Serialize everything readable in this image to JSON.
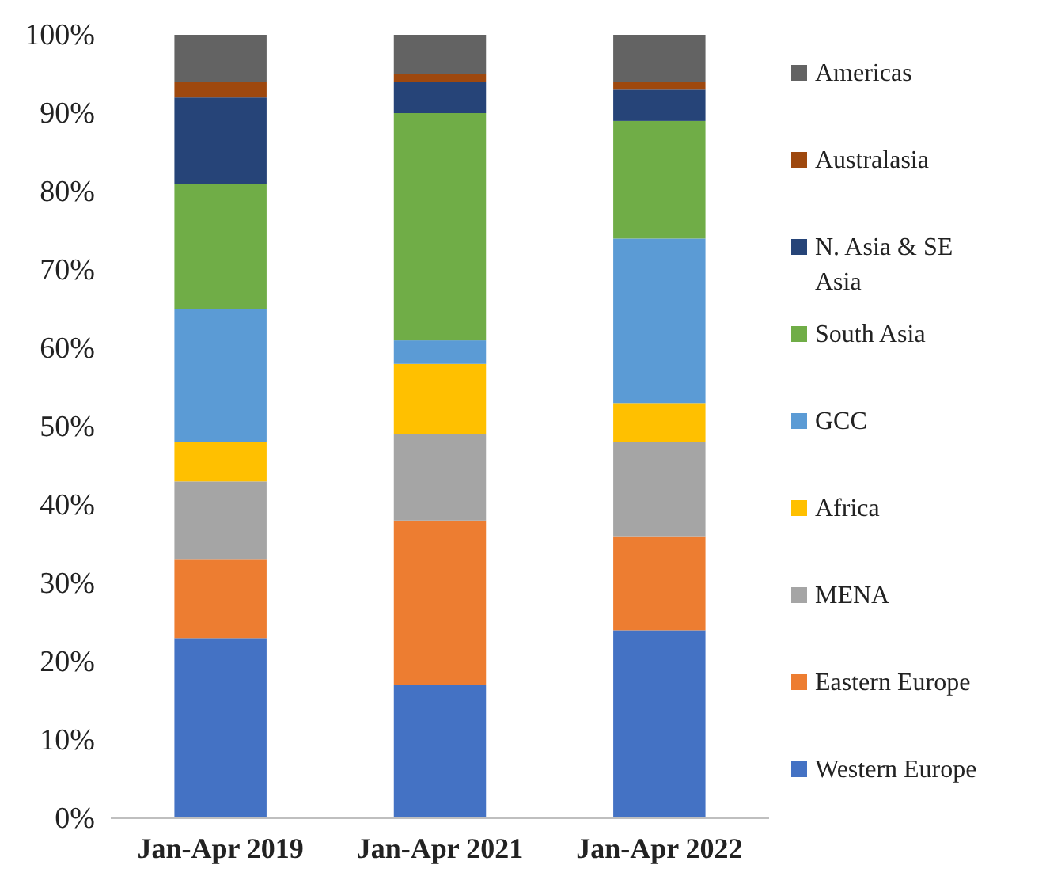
{
  "chart_data": {
    "type": "bar",
    "stacked": true,
    "categories": [
      "Jan-Apr 2019",
      "Jan-Apr 2021",
      "Jan-Apr 2022"
    ],
    "series": [
      {
        "name": "Western Europe",
        "color": "#4472c4",
        "values": [
          23,
          17,
          24
        ]
      },
      {
        "name": "Eastern Europe",
        "color": "#ed7d31",
        "values": [
          10,
          21,
          12
        ]
      },
      {
        "name": "MENA",
        "color": "#a5a5a5",
        "values": [
          10,
          11,
          12
        ]
      },
      {
        "name": "Africa",
        "color": "#ffc000",
        "values": [
          5,
          9,
          5
        ]
      },
      {
        "name": "GCC",
        "color": "#5b9bd5",
        "values": [
          17,
          3,
          21
        ]
      },
      {
        "name": "South Asia",
        "color": "#70ad47",
        "values": [
          16,
          29,
          15
        ]
      },
      {
        "name": "N. Asia & SE Asia",
        "color": "#264478",
        "values": [
          11,
          4,
          4
        ]
      },
      {
        "name": "Australasia",
        "color": "#9e480e",
        "values": [
          2,
          1,
          1
        ]
      },
      {
        "name": "Americas",
        "color": "#636363",
        "values": [
          6,
          5,
          6
        ]
      }
    ],
    "ylim": [
      0,
      100
    ],
    "yticks": [
      {
        "value": 0,
        "label": "0%"
      },
      {
        "value": 10,
        "label": "10%"
      },
      {
        "value": 20,
        "label": "20%"
      },
      {
        "value": 30,
        "label": "30%"
      },
      {
        "value": 40,
        "label": "40%"
      },
      {
        "value": 50,
        "label": "50%"
      },
      {
        "value": 60,
        "label": "60%"
      },
      {
        "value": 70,
        "label": "70%"
      },
      {
        "value": 80,
        "label": "80%"
      },
      {
        "value": 90,
        "label": "90%"
      },
      {
        "value": 100,
        "label": "100%"
      }
    ],
    "legend": "right"
  }
}
